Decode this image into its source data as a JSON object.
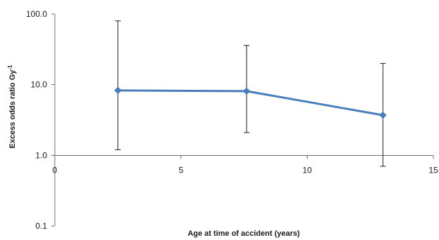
{
  "chart_data": {
    "type": "line",
    "title": "",
    "xlabel": "Age at time of accident  (years)",
    "ylabel": "Excess odds ratio Gy",
    "ylabel_superscript": "-1",
    "xlim": [
      0,
      15
    ],
    "ylim": [
      0.1,
      100
    ],
    "yscale": "log",
    "x_ticks": [
      0,
      5,
      10,
      15
    ],
    "x_tick_labels": [
      "0",
      "5",
      "10",
      "15"
    ],
    "y_ticks": [
      0.1,
      1,
      10,
      100
    ],
    "y_tick_labels": [
      "0.1",
      "1.0",
      "10.0",
      "100.0"
    ],
    "x_axis_crosses_at_y": 1,
    "grid": false,
    "legend": "none",
    "series": [
      {
        "color": "#4a7ebb",
        "marker": "diamond",
        "points": [
          {
            "x": 2.5,
            "y": 8.3,
            "lower": 1.2,
            "upper": 80
          },
          {
            "x": 7.6,
            "y": 8.1,
            "lower": 2.1,
            "upper": 36
          },
          {
            "x": 13.0,
            "y": 3.7,
            "lower": 0.7,
            "upper": 20
          }
        ]
      }
    ],
    "errorbar_color": "#1a1a1a"
  }
}
